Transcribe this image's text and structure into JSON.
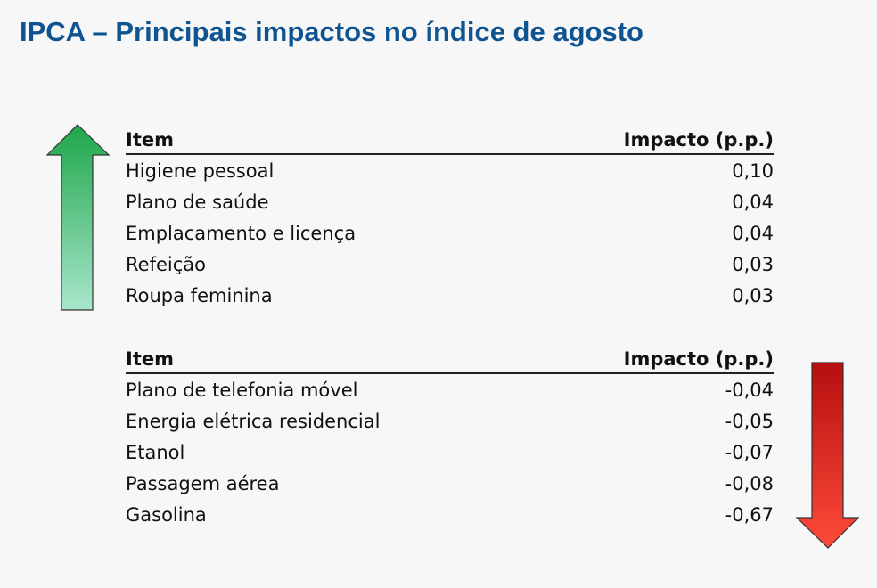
{
  "title": "IPCA – Principais impactos no índice de agosto",
  "tables": [
    {
      "direction": "up",
      "header": {
        "item": "Item",
        "impact": "Impacto (p.p.)"
      },
      "rows": [
        {
          "item": "Higiene pessoal",
          "impact": "0,10"
        },
        {
          "item": "Plano de saúde",
          "impact": "0,04"
        },
        {
          "item": "Emplacamento e licença",
          "impact": "0,04"
        },
        {
          "item": "Refeição",
          "impact": "0,03"
        },
        {
          "item": "Roupa feminina",
          "impact": "0,03"
        }
      ]
    },
    {
      "direction": "down",
      "header": {
        "item": "Item",
        "impact": "Impacto (p.p.)"
      },
      "rows": [
        {
          "item": "Plano de telefonia móvel",
          "impact": "-0,04"
        },
        {
          "item": "Energia elétrica residencial",
          "impact": "-0,05"
        },
        {
          "item": "Etanol",
          "impact": "-0,07"
        },
        {
          "item": "Passagem aérea",
          "impact": "-0,08"
        },
        {
          "item": "Gasolina",
          "impact": "-0,67"
        }
      ]
    }
  ],
  "colors": {
    "title": "#0f5491",
    "arrow_up_top": "#1fa64a",
    "arrow_up_bottom": "#a8e6cc",
    "arrow_down_top": "#b50f0f",
    "arrow_down_bottom": "#ff4a3a"
  },
  "icons": {
    "up": "green-up-arrow-icon",
    "down": "red-down-arrow-icon"
  }
}
